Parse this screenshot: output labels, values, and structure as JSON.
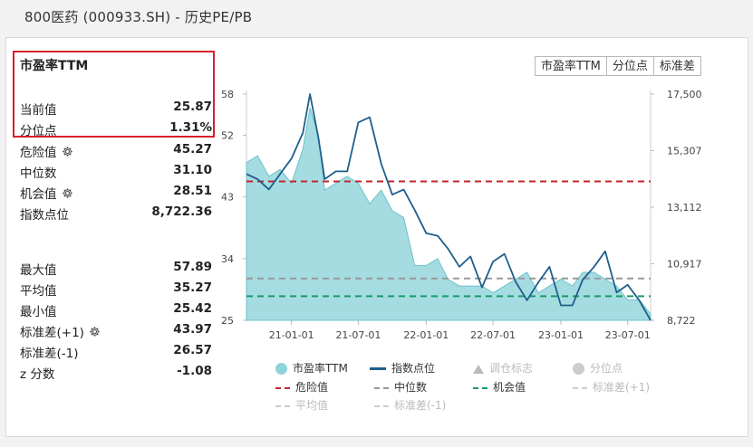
{
  "window_title": "800医药 (000933.SH) - 历史PE/PB",
  "metric_title": "市盈率TTM",
  "stats": {
    "current": {
      "label": "当前值",
      "value": "25.87"
    },
    "percentile": {
      "label": "分位点",
      "value": "1.31%"
    },
    "danger": {
      "label": "危险值",
      "value": "45.27"
    },
    "median": {
      "label": "中位数",
      "value": "31.10"
    },
    "opportunity": {
      "label": "机会值",
      "value": "28.51"
    },
    "index_points": {
      "label": "指数点位",
      "value": "8,722.36"
    },
    "max": {
      "label": "最大值",
      "value": "57.89"
    },
    "mean": {
      "label": "平均值",
      "value": "35.27"
    },
    "min": {
      "label": "最小值",
      "value": "25.42"
    },
    "std_plus": {
      "label": "标准差(+1)",
      "value": "43.97"
    },
    "std_minus": {
      "label": "标准差(-1)",
      "value": "26.57"
    },
    "z_score": {
      "label": "z 分数",
      "value": "-1.08"
    }
  },
  "tabs": [
    "市盈率TTM",
    "分位点",
    "标准差"
  ],
  "legend": {
    "pe": "市盈率TTM",
    "index": "指数点位",
    "rebalance": "调仓标志",
    "percentile": "分位点",
    "danger": "危险值",
    "median": "中位数",
    "opportunity": "机会值",
    "std_plus": "标准差(+1)",
    "mean": "平均值",
    "std_minus": "标准差(-1)"
  },
  "colors": {
    "pe_fill": "#8fd3da",
    "pe_line": "#6cc3cc",
    "index_line": "#1f5f8b",
    "danger": "#c0262d",
    "median": "#999999",
    "opportunity": "#179b6a",
    "highlight": "#d6202a"
  },
  "chart_data": {
    "type": "area",
    "x_ticks": [
      "21-01-01",
      "21-07-01",
      "22-01-01",
      "22-07-01",
      "23-01-01",
      "23-07-01"
    ],
    "y_left_ticks": [
      "58",
      "52",
      "43",
      "34",
      "25"
    ],
    "y_right_ticks": [
      "17,500",
      "15,307",
      "13,112",
      "10,917",
      "8,722"
    ],
    "y_left_range": [
      25,
      58
    ],
    "y_right_range": [
      8722,
      17500
    ],
    "reference_lines": {
      "danger": 45.27,
      "median": 31.1,
      "opportunity": 28.51
    },
    "series": [
      {
        "name": "市盈率TTM",
        "x": [
          "2020-09-01",
          "2020-10-01",
          "2020-11-01",
          "2020-12-01",
          "2021-01-01",
          "2021-02-01",
          "2021-02-20",
          "2021-03-15",
          "2021-04-01",
          "2021-05-01",
          "2021-06-01",
          "2021-07-01",
          "2021-08-01",
          "2021-09-01",
          "2021-10-01",
          "2021-11-01",
          "2021-12-01",
          "2022-01-01",
          "2022-02-01",
          "2022-03-01",
          "2022-04-01",
          "2022-05-01",
          "2022-06-01",
          "2022-07-01",
          "2022-08-01",
          "2022-09-01",
          "2022-10-01",
          "2022-11-01",
          "2022-12-01",
          "2023-01-01",
          "2023-02-01",
          "2023-03-01",
          "2023-04-01",
          "2023-05-01",
          "2023-06-01",
          "2023-07-01",
          "2023-08-01",
          "2023-09-01"
        ],
        "values": [
          48,
          49,
          46,
          47,
          45,
          50,
          56,
          52,
          44,
          45,
          46,
          45,
          42,
          44,
          41,
          40,
          33,
          33,
          34,
          31,
          30,
          30,
          30,
          29,
          30,
          31,
          32,
          29,
          30,
          31,
          30,
          32,
          32,
          31,
          30,
          28,
          28,
          25.9
        ]
      },
      {
        "name": "指数点位",
        "x": [
          "2020-09-01",
          "2020-10-01",
          "2020-11-01",
          "2020-12-01",
          "2021-01-01",
          "2021-02-01",
          "2021-02-20",
          "2021-03-15",
          "2021-04-01",
          "2021-05-01",
          "2021-06-01",
          "2021-07-01",
          "2021-08-01",
          "2021-09-01",
          "2021-10-01",
          "2021-11-01",
          "2021-12-01",
          "2022-01-01",
          "2022-02-01",
          "2022-03-01",
          "2022-04-01",
          "2022-05-01",
          "2022-06-01",
          "2022-07-01",
          "2022-08-01",
          "2022-09-01",
          "2022-10-01",
          "2022-11-01",
          "2022-12-01",
          "2023-01-01",
          "2023-02-01",
          "2023-03-01",
          "2023-04-01",
          "2023-05-01",
          "2023-06-01",
          "2023-07-01",
          "2023-08-01",
          "2023-09-01"
        ],
        "values": [
          14400,
          14200,
          13800,
          14400,
          15000,
          16000,
          17500,
          15800,
          14200,
          14500,
          14500,
          16400,
          16600,
          14800,
          13600,
          13800,
          13000,
          12100,
          12000,
          11500,
          10800,
          11200,
          10000,
          11000,
          11300,
          10200,
          9500,
          10200,
          10800,
          9300,
          9300,
          10300,
          10800,
          11400,
          9800,
          10100,
          9500,
          8722
        ]
      }
    ]
  }
}
